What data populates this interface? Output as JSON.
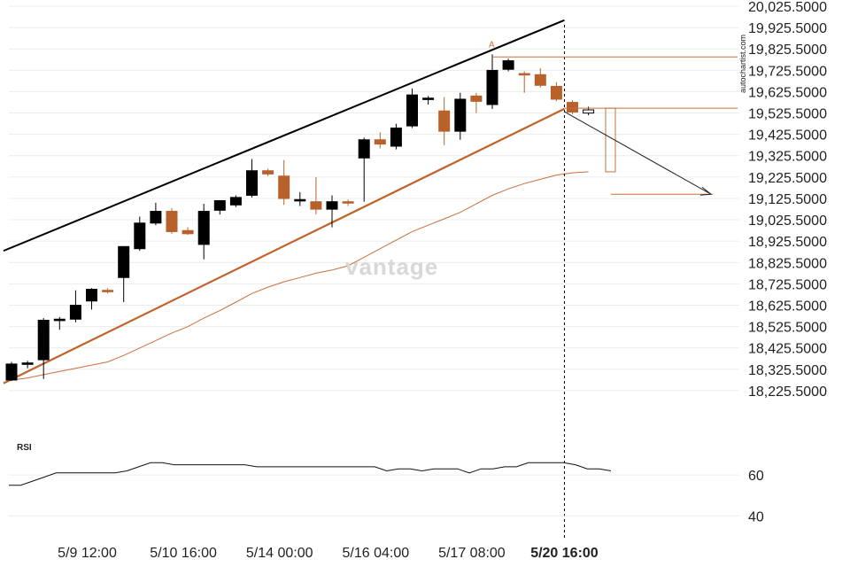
{
  "watermark": "vantage",
  "source_label": "autochartist.com",
  "chart_data": {
    "type": "candlestick",
    "price_ylim": [
      18125.5,
      20025.5
    ],
    "y_ticks": [
      "20,025.5000",
      "19,925.5000",
      "19,825.5000",
      "19,725.5000",
      "19,625.5000",
      "19,525.5000",
      "19,425.5000",
      "19,325.5000",
      "19,225.5000",
      "19,125.5000",
      "19,025.5000",
      "18,925.5000",
      "18,825.5000",
      "18,725.5000",
      "18,625.5000",
      "18,525.5000",
      "18,425.5000",
      "18,325.5000",
      "18,225.5000"
    ],
    "y_tick_values": [
      20025.5,
      19925.5,
      19825.5,
      19725.5,
      19625.5,
      19525.5,
      19425.5,
      19325.5,
      19225.5,
      19125.5,
      19025.5,
      18925.5,
      18825.5,
      18725.5,
      18625.5,
      18525.5,
      18425.5,
      18325.5,
      18225.5
    ],
    "x_labels": [
      {
        "label": "5/9 12:00",
        "index": 5,
        "bold": false
      },
      {
        "label": "5/10 16:00",
        "index": 11,
        "bold": false
      },
      {
        "label": "5/14 00:00",
        "index": 17,
        "bold": false
      },
      {
        "label": "5/16 04:00",
        "index": 23,
        "bold": false
      },
      {
        "label": "5/17 08:00",
        "index": 29,
        "bold": false
      },
      {
        "label": "5/20 16:00",
        "index": 35,
        "bold": true
      }
    ],
    "candles": [
      {
        "o": 18275,
        "h": 18360,
        "l": 18270,
        "c": 18350
      },
      {
        "o": 18350,
        "h": 18365,
        "l": 18330,
        "c": 18355
      },
      {
        "o": 18370,
        "h": 18565,
        "l": 18280,
        "c": 18555
      },
      {
        "o": 18555,
        "h": 18570,
        "l": 18510,
        "c": 18560
      },
      {
        "o": 18560,
        "h": 18695,
        "l": 18545,
        "c": 18625
      },
      {
        "o": 18645,
        "h": 18705,
        "l": 18605,
        "c": 18700
      },
      {
        "o": 18695,
        "h": 18705,
        "l": 18680,
        "c": 18690
      },
      {
        "o": 18755,
        "h": 18900,
        "l": 18640,
        "c": 18900
      },
      {
        "o": 18890,
        "h": 19040,
        "l": 18880,
        "c": 19010
      },
      {
        "o": 19010,
        "h": 19105,
        "l": 19000,
        "c": 19065
      },
      {
        "o": 19065,
        "h": 19080,
        "l": 18960,
        "c": 18970
      },
      {
        "o": 18975,
        "h": 18990,
        "l": 18955,
        "c": 18960
      },
      {
        "o": 18910,
        "h": 19100,
        "l": 18840,
        "c": 19065
      },
      {
        "o": 19070,
        "h": 19115,
        "l": 19050,
        "c": 19115
      },
      {
        "o": 19095,
        "h": 19140,
        "l": 19085,
        "c": 19130
      },
      {
        "o": 19140,
        "h": 19310,
        "l": 19130,
        "c": 19255
      },
      {
        "o": 19255,
        "h": 19265,
        "l": 19230,
        "c": 19240
      },
      {
        "o": 19230,
        "h": 19305,
        "l": 19095,
        "c": 19125
      },
      {
        "o": 19120,
        "h": 19155,
        "l": 19090,
        "c": 19120
      },
      {
        "o": 19110,
        "h": 19225,
        "l": 19050,
        "c": 19075
      },
      {
        "o": 19075,
        "h": 19140,
        "l": 18990,
        "c": 19110
      },
      {
        "o": 19110,
        "h": 19120,
        "l": 19090,
        "c": 19105
      },
      {
        "o": 19315,
        "h": 19410,
        "l": 19110,
        "c": 19400
      },
      {
        "o": 19400,
        "h": 19435,
        "l": 19360,
        "c": 19380
      },
      {
        "o": 19370,
        "h": 19475,
        "l": 19355,
        "c": 19455
      },
      {
        "o": 19465,
        "h": 19640,
        "l": 19455,
        "c": 19610
      },
      {
        "o": 19595,
        "h": 19605,
        "l": 19565,
        "c": 19595
      },
      {
        "o": 19535,
        "h": 19600,
        "l": 19375,
        "c": 19440
      },
      {
        "o": 19440,
        "h": 19620,
        "l": 19400,
        "c": 19590
      },
      {
        "o": 19605,
        "h": 19620,
        "l": 19525,
        "c": 19580
      },
      {
        "o": 19565,
        "h": 19800,
        "l": 19545,
        "c": 19725
      },
      {
        "o": 19730,
        "h": 19780,
        "l": 19720,
        "c": 19770
      },
      {
        "o": 19710,
        "h": 19720,
        "l": 19620,
        "c": 19705
      },
      {
        "o": 19705,
        "h": 19735,
        "l": 19645,
        "c": 19655
      },
      {
        "o": 19650,
        "h": 19670,
        "l": 19580,
        "c": 19590
      },
      {
        "o": 19575,
        "h": 19585,
        "l": 19520,
        "c": 19530
      },
      {
        "o": 19525,
        "h": 19555,
        "l": 19515,
        "c": 19540
      }
    ],
    "moving_average": [
      18275,
      18285,
      18300,
      18315,
      18330,
      18345,
      18360,
      18390,
      18425,
      18460,
      18495,
      18525,
      18565,
      18600,
      18640,
      18680,
      18710,
      18735,
      18755,
      18775,
      18790,
      18810,
      18850,
      18890,
      18930,
      18970,
      19000,
      19030,
      19060,
      19100,
      19140,
      19170,
      19195,
      19215,
      19235,
      19245,
      19250
    ],
    "channel_upper": {
      "start_index": -0.5,
      "start_price": 18880,
      "end_index": 34.5,
      "end_price": 19960
    },
    "channel_lower": {
      "start_index": -0.5,
      "start_price": 18260,
      "end_index": 34.5,
      "end_price": 19545
    },
    "peak_marker": {
      "index": 30,
      "price": 19825,
      "label": "A"
    },
    "resistance_level": 19788,
    "breakout_level": 19548,
    "target_level": 19145,
    "forecast_box": {
      "top": 19548,
      "bottom": 19250
    },
    "current_index": 34.5,
    "rsi": {
      "title": "RSI",
      "ticks": [
        "60",
        "40"
      ],
      "tick_values": [
        60,
        40
      ],
      "ylim": [
        28,
        80
      ],
      "values": [
        55,
        55,
        57,
        59,
        61,
        61,
        61,
        61,
        61,
        61,
        62,
        64,
        66,
        66,
        65,
        65,
        65,
        65,
        65,
        65,
        65,
        64,
        64,
        64,
        64,
        64,
        64,
        64,
        64,
        64,
        64,
        64,
        62,
        63,
        63,
        62,
        63,
        63,
        63,
        61,
        63,
        63,
        64,
        64,
        66,
        66,
        66,
        66,
        65,
        63,
        63,
        62
      ]
    }
  }
}
